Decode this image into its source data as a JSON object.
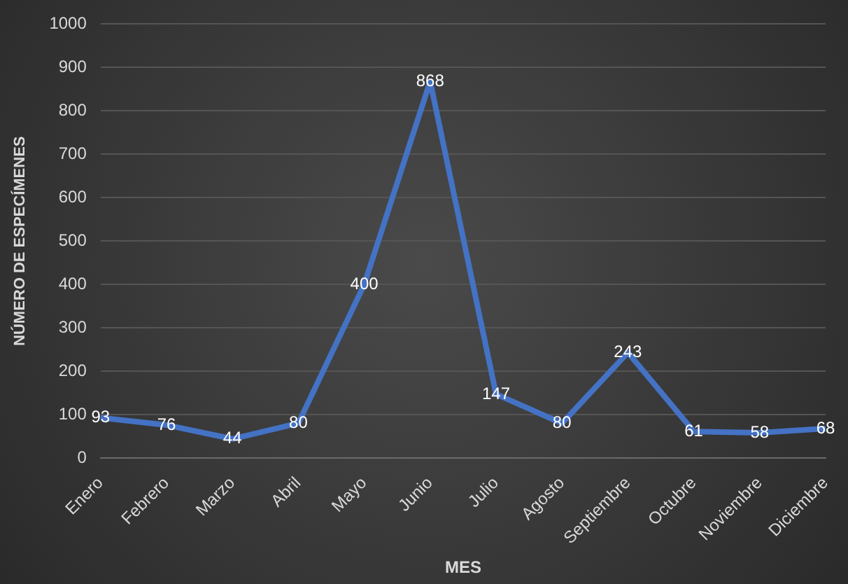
{
  "chart_data": {
    "type": "line",
    "xlabel": "MES",
    "ylabel": "NÚMERO DE ESPECÍMENES",
    "categories": [
      "Enero",
      "Febrero",
      "Marzo",
      "Abril",
      "Mayo",
      "Junio",
      "Julio",
      "Agosto",
      "Septiembre",
      "Octubre",
      "Noviembre",
      "Diciembre"
    ],
    "series": [
      {
        "color": "#4472c4",
        "values": [
          93,
          76,
          44,
          80,
          400,
          868,
          147,
          80,
          243,
          61,
          58,
          68
        ]
      }
    ],
    "ylim": [
      0,
      1000
    ],
    "yticks": [
      0,
      100,
      200,
      300,
      400,
      500,
      600,
      700,
      800,
      900,
      1000
    ],
    "grid": "y",
    "legend": false,
    "marker": "none",
    "line_style": "solid",
    "data_labels": true
  }
}
